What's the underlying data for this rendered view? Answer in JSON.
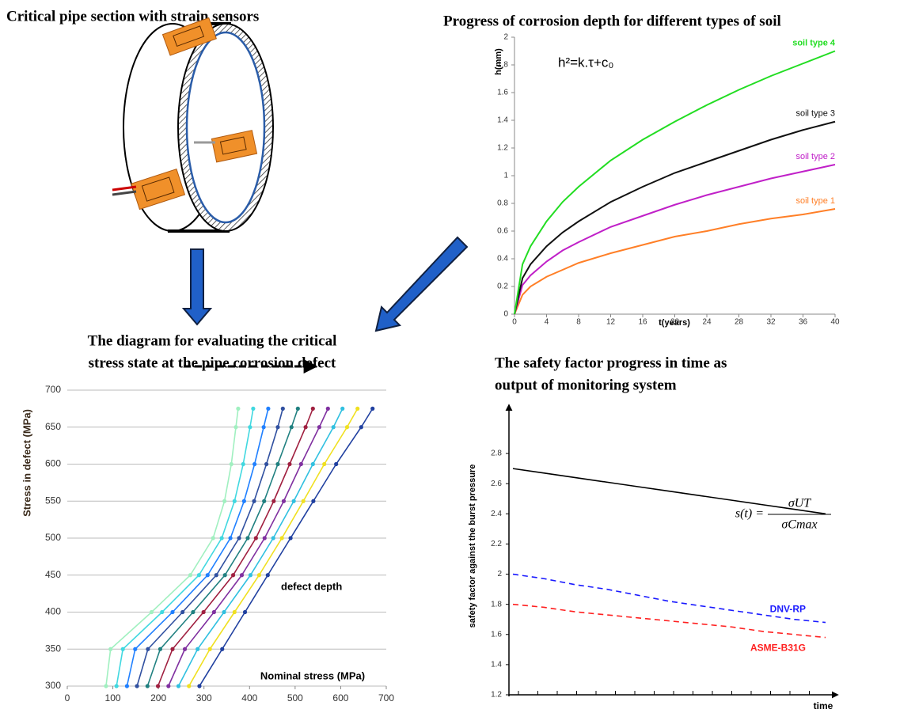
{
  "diagram": {
    "title": "Critical pipe section with strain sensors"
  },
  "chart_data": [
    {
      "type": "line",
      "title": "Progress of corrosion depth for different types of soil",
      "x_label": "t(years)",
      "y_label": "h(mm)",
      "annotation": "h²=k.τ+c₀",
      "x": [
        0,
        1,
        2,
        4,
        6,
        8,
        12,
        16,
        20,
        24,
        28,
        32,
        36,
        40
      ],
      "series": [
        {
          "name": "soil type 1",
          "color": "#ff7f27",
          "values": [
            0,
            0.14,
            0.2,
            0.27,
            0.32,
            0.37,
            0.44,
            0.5,
            0.56,
            0.6,
            0.65,
            0.69,
            0.72,
            0.76
          ]
        },
        {
          "name": "soil type 2",
          "color": "#c020c8",
          "values": [
            0,
            0.21,
            0.28,
            0.38,
            0.46,
            0.52,
            0.63,
            0.71,
            0.79,
            0.86,
            0.92,
            0.98,
            1.03,
            1.08
          ]
        },
        {
          "name": "soil type 3",
          "color": "#111111",
          "values": [
            0,
            0.26,
            0.36,
            0.49,
            0.59,
            0.67,
            0.81,
            0.92,
            1.02,
            1.1,
            1.18,
            1.26,
            1.33,
            1.39
          ]
        },
        {
          "name": "soil type 4",
          "color": "#22dd22",
          "values": [
            0,
            0.36,
            0.49,
            0.67,
            0.81,
            0.92,
            1.11,
            1.26,
            1.39,
            1.51,
            1.62,
            1.72,
            1.81,
            1.9
          ]
        }
      ],
      "xlim": [
        0,
        40
      ],
      "xticks": [
        0,
        4,
        8,
        12,
        16,
        20,
        24,
        28,
        32,
        36,
        40
      ],
      "ylim": [
        0,
        2
      ],
      "yticks": [
        0,
        0.2,
        0.4,
        0.6,
        0.8,
        1,
        1.2,
        1.4,
        1.6,
        1.8,
        2
      ],
      "grid": false,
      "markers": false
    },
    {
      "type": "line",
      "title": [
        "The diagram for evaluating the critical",
        "stress state at the pipe corrosion defect"
      ],
      "x_label": "Nominal stress (MPa)",
      "y_label": "Stress in defect (MPa)",
      "annotation": "defect depth",
      "series": [
        {
          "color": "#a0f0c0",
          "x": [
            85,
            95,
            185,
            270,
            320,
            345,
            360,
            370,
            375
          ],
          "values": [
            300,
            350,
            400,
            450,
            500,
            550,
            600,
            650,
            675
          ]
        },
        {
          "color": "#40d8e0",
          "x": [
            108,
            122,
            208,
            289,
            339,
            367,
            386,
            401,
            408
          ],
          "values": [
            300,
            350,
            400,
            450,
            500,
            550,
            600,
            650,
            675
          ]
        },
        {
          "color": "#2080ff",
          "x": [
            131,
            149,
            231,
            308,
            358,
            388,
            411,
            431,
            441
          ],
          "values": [
            300,
            350,
            400,
            450,
            500,
            550,
            600,
            650,
            675
          ]
        },
        {
          "color": "#3050a0",
          "x": [
            153,
            177,
            253,
            327,
            377,
            410,
            437,
            462,
            473
          ],
          "values": [
            300,
            350,
            400,
            450,
            500,
            550,
            600,
            650,
            675
          ]
        },
        {
          "color": "#208080",
          "x": [
            176,
            204,
            276,
            346,
            396,
            432,
            462,
            492,
            506
          ],
          "values": [
            300,
            350,
            400,
            450,
            500,
            550,
            600,
            650,
            675
          ]
        },
        {
          "color": "#a02040",
          "x": [
            199,
            231,
            299,
            364,
            414,
            453,
            488,
            523,
            539
          ],
          "values": [
            300,
            350,
            400,
            450,
            500,
            550,
            600,
            650,
            675
          ]
        },
        {
          "color": "#8030a0",
          "x": [
            222,
            258,
            322,
            383,
            433,
            475,
            513,
            553,
            572
          ],
          "values": [
            300,
            350,
            400,
            450,
            500,
            550,
            600,
            650,
            675
          ]
        },
        {
          "color": "#30c0e0",
          "x": [
            244,
            286,
            344,
            402,
            452,
            497,
            539,
            584,
            604
          ],
          "values": [
            300,
            350,
            400,
            450,
            500,
            550,
            600,
            650,
            675
          ]
        },
        {
          "color": "#f0e020",
          "x": [
            267,
            313,
            367,
            421,
            471,
            518,
            564,
            614,
            637
          ],
          "values": [
            300,
            350,
            400,
            450,
            500,
            550,
            600,
            650,
            675
          ]
        },
        {
          "color": "#2040a0",
          "x": [
            290,
            340,
            390,
            440,
            490,
            540,
            590,
            645,
            670
          ],
          "values": [
            300,
            350,
            400,
            450,
            500,
            550,
            600,
            650,
            675
          ]
        }
      ],
      "xlim": [
        0,
        700
      ],
      "xticks": [
        0,
        100,
        200,
        300,
        400,
        500,
        600,
        700
      ],
      "ylim": [
        300,
        700
      ],
      "yticks": [
        300,
        350,
        400,
        450,
        500,
        550,
        600,
        650,
        700
      ],
      "grid": true,
      "markers": true
    },
    {
      "type": "line",
      "title": [
        "The safety factor progress in time as",
        "output of monitoring system"
      ],
      "x_label": "time",
      "y_label": "safety factor against the burst pressure",
      "formula": {
        "lhs": "s(t) =",
        "numerator": "σUT",
        "denominator": "σCmax"
      },
      "x": [
        0,
        1,
        2,
        3,
        4,
        5,
        6,
        7,
        8,
        9,
        10
      ],
      "series": [
        {
          "color": "#000000",
          "style": "solid",
          "values": [
            2.7,
            2.67,
            2.64,
            2.61,
            2.58,
            2.55,
            2.52,
            2.49,
            2.46,
            2.43,
            2.4
          ]
        },
        {
          "name": "DNV-RP",
          "color": "#1a1aff",
          "style": "dashed",
          "values": [
            2.0,
            1.97,
            1.93,
            1.9,
            1.86,
            1.82,
            1.79,
            1.76,
            1.73,
            1.7,
            1.68
          ]
        },
        {
          "name": "ASME-B31G",
          "color": "#ff2020",
          "style": "dashed",
          "values": [
            1.8,
            1.78,
            1.75,
            1.73,
            1.71,
            1.69,
            1.67,
            1.65,
            1.62,
            1.6,
            1.58
          ]
        }
      ],
      "xlim": [
        0,
        10
      ],
      "ylim": [
        1.2,
        2.9
      ],
      "yticks": [
        1.2,
        1.4,
        1.6,
        1.8,
        2,
        2.2,
        2.4,
        2.6,
        2.8
      ],
      "grid": false,
      "markers": false
    }
  ]
}
